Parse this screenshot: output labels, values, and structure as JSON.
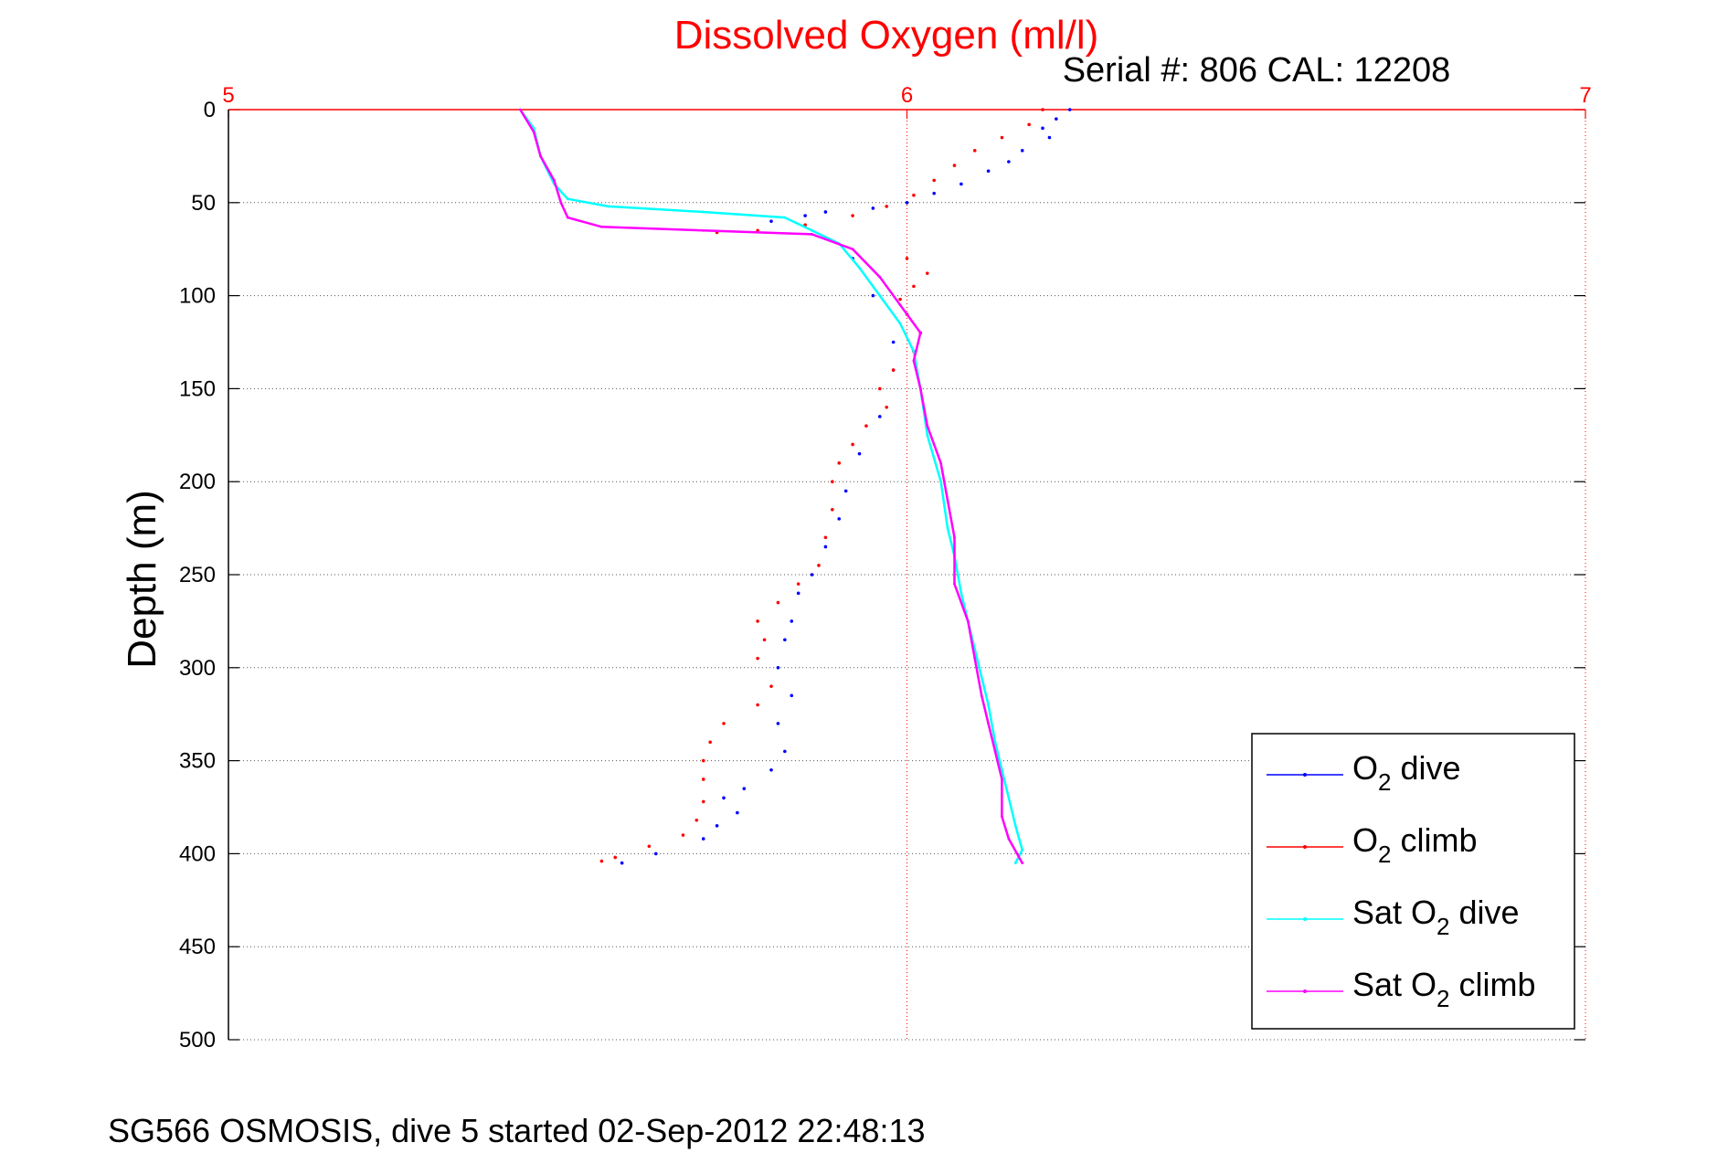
{
  "chart_data": {
    "type": "scatter",
    "title": "Dissolved Oxygen (ml/l)",
    "subtitle": "Serial #: 806  CAL: 12208",
    "xlabel": "",
    "ylabel": "Depth (m)",
    "footer": "SG566 OSMOSIS, dive 5 started 02-Sep-2012 22:48:13",
    "xlim": [
      5,
      7
    ],
    "ylim": [
      0,
      500
    ],
    "y_reversed": true,
    "x_axis_position": "top",
    "x_ticks": [
      "5",
      "6",
      "7"
    ],
    "y_ticks": [
      "0",
      "50",
      "100",
      "150",
      "200",
      "250",
      "300",
      "350",
      "400",
      "450",
      "500"
    ],
    "grid": true,
    "legend_position": "bottom-right",
    "colors": {
      "title": "#ff0000",
      "x_axis": "#ff0000",
      "o2_dive": "#0000ff",
      "o2_climb": "#ff0000",
      "sat_o2_dive": "#00ffff",
      "sat_o2_climb": "#ff00ff"
    },
    "series": [
      {
        "name": "O2 dive",
        "legend_main": "O",
        "legend_sub": "2",
        "legend_rest": " dive",
        "style": "points",
        "color": "#0000ff",
        "points": [
          [
            6.24,
            0
          ],
          [
            6.22,
            5
          ],
          [
            6.2,
            10
          ],
          [
            6.21,
            15
          ],
          [
            6.17,
            22
          ],
          [
            6.15,
            28
          ],
          [
            6.12,
            33
          ],
          [
            6.08,
            40
          ],
          [
            6.04,
            45
          ],
          [
            6.0,
            50
          ],
          [
            5.95,
            53
          ],
          [
            5.88,
            55
          ],
          [
            5.85,
            57
          ],
          [
            5.8,
            60
          ],
          [
            5.92,
            80
          ],
          [
            5.95,
            100
          ],
          [
            5.98,
            125
          ],
          [
            5.98,
            140
          ],
          [
            5.96,
            165
          ],
          [
            5.93,
            185
          ],
          [
            5.91,
            205
          ],
          [
            5.9,
            220
          ],
          [
            5.88,
            235
          ],
          [
            5.86,
            250
          ],
          [
            5.84,
            260
          ],
          [
            5.83,
            275
          ],
          [
            5.82,
            285
          ],
          [
            5.81,
            300
          ],
          [
            5.83,
            315
          ],
          [
            5.81,
            330
          ],
          [
            5.82,
            345
          ],
          [
            5.8,
            355
          ],
          [
            5.76,
            365
          ],
          [
            5.73,
            370
          ],
          [
            5.75,
            378
          ],
          [
            5.72,
            385
          ],
          [
            5.7,
            392
          ],
          [
            5.63,
            400
          ],
          [
            5.58,
            405
          ]
        ]
      },
      {
        "name": "O2 climb",
        "legend_main": "O",
        "legend_sub": "2",
        "legend_rest": " climb",
        "style": "points",
        "color": "#ff0000",
        "points": [
          [
            6.2,
            0
          ],
          [
            6.18,
            8
          ],
          [
            6.14,
            15
          ],
          [
            6.1,
            22
          ],
          [
            6.07,
            30
          ],
          [
            6.04,
            38
          ],
          [
            6.01,
            46
          ],
          [
            5.97,
            52
          ],
          [
            5.92,
            57
          ],
          [
            5.85,
            62
          ],
          [
            5.78,
            65
          ],
          [
            5.72,
            66
          ],
          [
            6.0,
            80
          ],
          [
            6.03,
            88
          ],
          [
            6.01,
            95
          ],
          [
            5.99,
            102
          ],
          [
            6.0,
            110
          ],
          [
            6.02,
            120
          ],
          [
            6.01,
            130
          ],
          [
            5.98,
            140
          ],
          [
            5.96,
            150
          ],
          [
            5.97,
            160
          ],
          [
            5.94,
            170
          ],
          [
            5.92,
            180
          ],
          [
            5.9,
            190
          ],
          [
            5.89,
            200
          ],
          [
            5.89,
            215
          ],
          [
            5.88,
            230
          ],
          [
            5.87,
            245
          ],
          [
            5.84,
            255
          ],
          [
            5.81,
            265
          ],
          [
            5.78,
            275
          ],
          [
            5.79,
            285
          ],
          [
            5.78,
            295
          ],
          [
            5.8,
            310
          ],
          [
            5.78,
            320
          ],
          [
            5.73,
            330
          ],
          [
            5.71,
            340
          ],
          [
            5.7,
            350
          ],
          [
            5.7,
            360
          ],
          [
            5.7,
            372
          ],
          [
            5.69,
            382
          ],
          [
            5.67,
            390
          ],
          [
            5.62,
            396
          ],
          [
            5.57,
            402
          ],
          [
            5.55,
            404
          ]
        ]
      },
      {
        "name": "Sat O2 dive",
        "legend_main": "Sat O",
        "legend_sub": "2",
        "legend_rest": " dive",
        "style": "line",
        "color": "#00ffff",
        "points": [
          [
            5.43,
            0
          ],
          [
            5.45,
            10
          ],
          [
            5.46,
            25
          ],
          [
            5.48,
            40
          ],
          [
            5.5,
            48
          ],
          [
            5.56,
            52
          ],
          [
            5.7,
            55
          ],
          [
            5.82,
            58
          ],
          [
            5.86,
            65
          ],
          [
            5.9,
            72
          ],
          [
            5.93,
            85
          ],
          [
            5.96,
            100
          ],
          [
            5.99,
            115
          ],
          [
            6.01,
            130
          ],
          [
            6.02,
            150
          ],
          [
            6.03,
            175
          ],
          [
            6.05,
            200
          ],
          [
            6.06,
            225
          ],
          [
            6.07,
            240
          ],
          [
            6.08,
            260
          ],
          [
            6.09,
            275
          ],
          [
            6.1,
            290
          ],
          [
            6.11,
            305
          ],
          [
            6.12,
            320
          ],
          [
            6.13,
            340
          ],
          [
            6.14,
            355
          ],
          [
            6.15,
            370
          ],
          [
            6.16,
            385
          ],
          [
            6.17,
            398
          ],
          [
            6.16,
            405
          ]
        ]
      },
      {
        "name": "Sat O2 climb",
        "legend_main": "Sat O",
        "legend_sub": "2",
        "legend_rest": " climb",
        "style": "line",
        "color": "#ff00ff",
        "points": [
          [
            5.43,
            0
          ],
          [
            5.45,
            12
          ],
          [
            5.46,
            25
          ],
          [
            5.48,
            38
          ],
          [
            5.49,
            50
          ],
          [
            5.5,
            58
          ],
          [
            5.55,
            63
          ],
          [
            5.7,
            65
          ],
          [
            5.86,
            67
          ],
          [
            5.92,
            75
          ],
          [
            5.96,
            90
          ],
          [
            5.99,
            105
          ],
          [
            6.02,
            120
          ],
          [
            6.01,
            135
          ],
          [
            6.02,
            150
          ],
          [
            6.03,
            170
          ],
          [
            6.05,
            190
          ],
          [
            6.06,
            210
          ],
          [
            6.07,
            230
          ],
          [
            6.07,
            255
          ],
          [
            6.09,
            275
          ],
          [
            6.1,
            295
          ],
          [
            6.11,
            315
          ],
          [
            6.12,
            330
          ],
          [
            6.13,
            345
          ],
          [
            6.14,
            360
          ],
          [
            6.14,
            380
          ],
          [
            6.15,
            392
          ],
          [
            6.17,
            405
          ]
        ]
      }
    ]
  }
}
